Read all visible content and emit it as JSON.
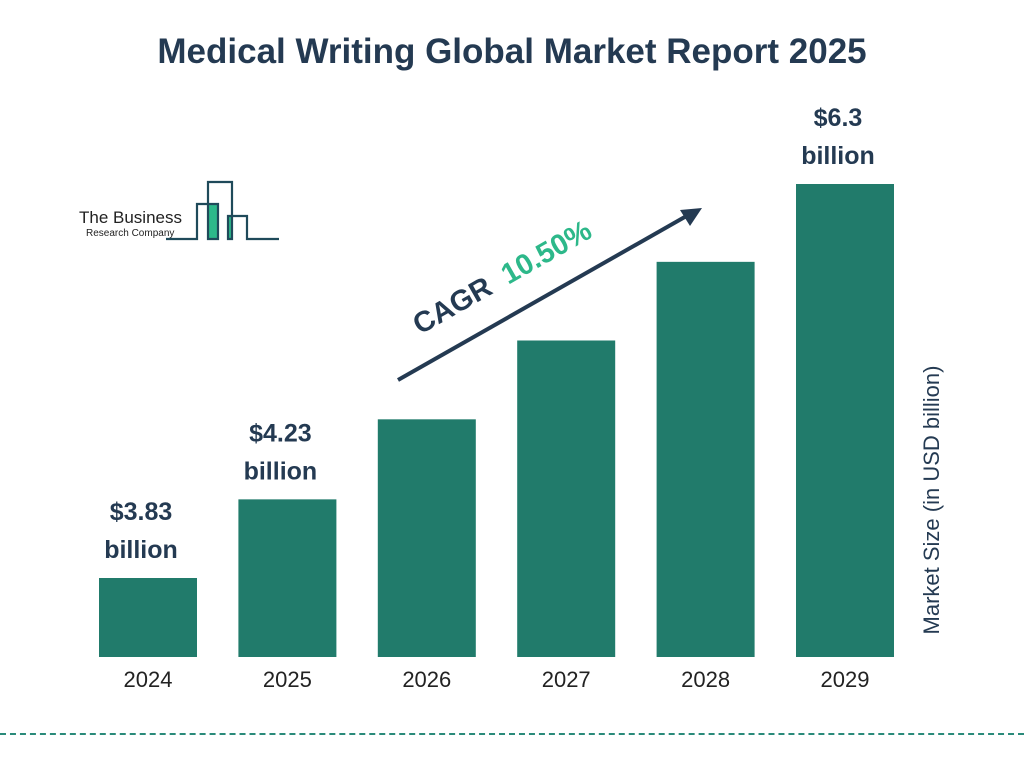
{
  "chart_data": {
    "type": "bar",
    "title": "Medical Writing Global Market Report 2025",
    "categories": [
      "2024",
      "2025",
      "2026",
      "2027",
      "2028",
      "2029"
    ],
    "values": [
      3.83,
      4.23,
      4.68,
      5.17,
      5.71,
      6.3
    ],
    "data_labels": [
      {
        "year": "2024",
        "line1": "$3.83",
        "line2": "billion"
      },
      {
        "year": "2025",
        "line1": "$4.23",
        "line2": "billion"
      },
      {
        "year": "2029",
        "line1": "$6.3",
        "line2": "billion"
      }
    ],
    "ylabel": "Market Size (in USD billion)",
    "xlabel": "",
    "grid": false,
    "bar_color": "#217b6b",
    "annotation": {
      "prefix": "CAGR",
      "value": "10.50%",
      "prefix_color": "#243a52",
      "value_color": "#2db88a"
    }
  },
  "logo": {
    "line1": "The Business",
    "line2": "Research Company"
  }
}
